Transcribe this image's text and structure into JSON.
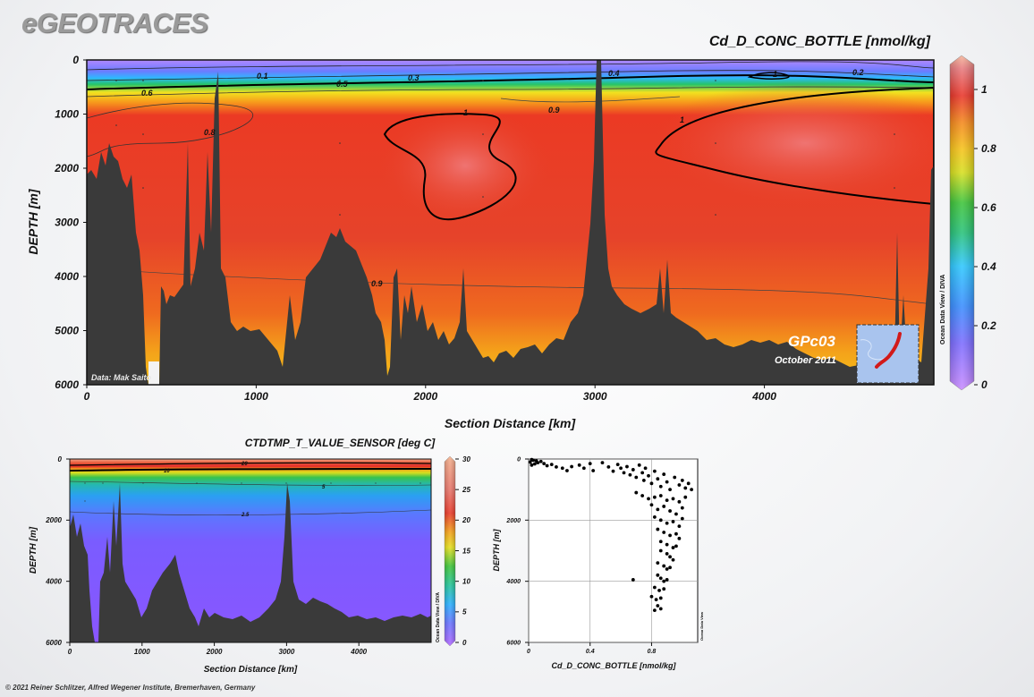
{
  "header": {
    "brand": "eGEOTRACES",
    "copyright": "© 2021 Reiner Schlitzer, Alfred Wegener Institute, Bremerhaven, Germany"
  },
  "chart_data": [
    {
      "type": "heatmap",
      "title": "Cd_D_CONC_BOTTLE [nmol/kg]",
      "xlabel": "Section Distance [km]",
      "ylabel": "DEPTH [m]",
      "xlim": [
        0,
        5000
      ],
      "ylim": [
        6000,
        0
      ],
      "x_ticks": [
        0,
        1000,
        2000,
        3000,
        4000
      ],
      "y_ticks": [
        0,
        1000,
        2000,
        3000,
        4000,
        5000,
        6000
      ],
      "colorbar": {
        "ticks": [
          0,
          0.2,
          0.4,
          0.6,
          0.8,
          1
        ],
        "range": [
          0,
          1.1
        ]
      },
      "contour_labels": [
        "0.1",
        "0.3",
        "0.4",
        "0.5",
        "0.6",
        "0.8",
        "0.9",
        "1",
        "0.2",
        "0.9",
        "1",
        "1",
        "1",
        "0.9"
      ],
      "data_credit": "Data: Mak Saito",
      "station_label": "GPc03",
      "date_label": "October 2011",
      "side_label": "Ocean Data View / DIVA"
    },
    {
      "type": "heatmap",
      "title": "CTDTMP_T_VALUE_SENSOR [deg C]",
      "xlabel": "Section Distance [km]",
      "ylabel": "DEPTH [m]",
      "xlim": [
        0,
        5000
      ],
      "ylim": [
        6000,
        0
      ],
      "x_ticks": [
        0,
        1000,
        2000,
        3000,
        4000
      ],
      "y_ticks": [
        0,
        2000,
        4000,
        6000
      ],
      "colorbar": {
        "ticks": [
          0,
          5,
          10,
          15,
          20,
          25,
          30
        ],
        "range": [
          0,
          30
        ]
      },
      "contour_labels": [
        "20",
        "10",
        "5",
        "2.5"
      ],
      "side_label": "Ocean Data View / DIVA"
    },
    {
      "type": "scatter",
      "xlabel": "Cd_D_CONC_BOTTLE [nmol/kg]",
      "ylabel": "DEPTH [m]",
      "xlim": [
        0,
        1.1
      ],
      "ylim": [
        6000,
        0
      ],
      "x_ticks": [
        0,
        0.4,
        0.8
      ],
      "y_ticks": [
        0,
        2000,
        4000,
        6000
      ],
      "side_label": "Ocean Data View",
      "points": [
        [
          0.02,
          20
        ],
        [
          0.03,
          40
        ],
        [
          0.05,
          60
        ],
        [
          0.01,
          100
        ],
        [
          0.06,
          120
        ],
        [
          0.04,
          160
        ],
        [
          0.02,
          200
        ],
        [
          0.08,
          80
        ],
        [
          0.1,
          150
        ],
        [
          0.12,
          220
        ],
        [
          0.15,
          180
        ],
        [
          0.18,
          260
        ],
        [
          0.22,
          300
        ],
        [
          0.25,
          380
        ],
        [
          0.28,
          250
        ],
        [
          0.33,
          200
        ],
        [
          0.36,
          300
        ],
        [
          0.4,
          150
        ],
        [
          0.42,
          380
        ],
        [
          0.48,
          120
        ],
        [
          0.52,
          260
        ],
        [
          0.55,
          400
        ],
        [
          0.58,
          180
        ],
        [
          0.6,
          300
        ],
        [
          0.62,
          450
        ],
        [
          0.64,
          250
        ],
        [
          0.66,
          520
        ],
        [
          0.68,
          350
        ],
        [
          0.7,
          600
        ],
        [
          0.72,
          200
        ],
        [
          0.74,
          450
        ],
        [
          0.75,
          700
        ],
        [
          0.76,
          300
        ],
        [
          0.78,
          550
        ],
        [
          0.8,
          800
        ],
        [
          0.82,
          400
        ],
        [
          0.84,
          650
        ],
        [
          0.86,
          900
        ],
        [
          0.88,
          500
        ],
        [
          0.9,
          750
        ],
        [
          0.92,
          1000
        ],
        [
          0.95,
          600
        ],
        [
          0.98,
          850
        ],
        [
          1.0,
          700
        ],
        [
          1.02,
          950
        ],
        [
          1.04,
          800
        ],
        [
          1.06,
          1000
        ],
        [
          0.7,
          1100
        ],
        [
          0.74,
          1200
        ],
        [
          0.78,
          1300
        ],
        [
          0.82,
          1250
        ],
        [
          0.86,
          1200
        ],
        [
          0.9,
          1350
        ],
        [
          0.94,
          1300
        ],
        [
          0.98,
          1400
        ],
        [
          1.02,
          1250
        ],
        [
          0.8,
          1500
        ],
        [
          0.84,
          1650
        ],
        [
          0.88,
          1550
        ],
        [
          0.92,
          1700
        ],
        [
          0.96,
          1800
        ],
        [
          1.0,
          1600
        ],
        [
          0.82,
          1900
        ],
        [
          0.86,
          2000
        ],
        [
          0.9,
          2100
        ],
        [
          0.94,
          2050
        ],
        [
          0.98,
          2200
        ],
        [
          1.0,
          1950
        ],
        [
          0.84,
          2300
        ],
        [
          0.88,
          2400
        ],
        [
          0.92,
          2500
        ],
        [
          0.96,
          2450
        ],
        [
          0.98,
          2600
        ],
        [
          0.86,
          2700
        ],
        [
          0.9,
          2800
        ],
        [
          0.94,
          2900
        ],
        [
          0.96,
          2850
        ],
        [
          0.86,
          3000
        ],
        [
          0.9,
          3100
        ],
        [
          0.92,
          3200
        ],
        [
          0.94,
          3300
        ],
        [
          0.84,
          3400
        ],
        [
          0.88,
          3500
        ],
        [
          0.9,
          3600
        ],
        [
          0.92,
          3550
        ],
        [
          0.84,
          3800
        ],
        [
          0.86,
          3900
        ],
        [
          0.88,
          4000
        ],
        [
          0.9,
          3950
        ],
        [
          0.82,
          4200
        ],
        [
          0.85,
          4300
        ],
        [
          0.88,
          4250
        ],
        [
          0.8,
          4500
        ],
        [
          0.83,
          4600
        ],
        [
          0.86,
          4550
        ],
        [
          0.84,
          4800
        ],
        [
          0.86,
          4900
        ],
        [
          0.82,
          4950
        ],
        [
          0.68,
          3950
        ]
      ]
    }
  ]
}
